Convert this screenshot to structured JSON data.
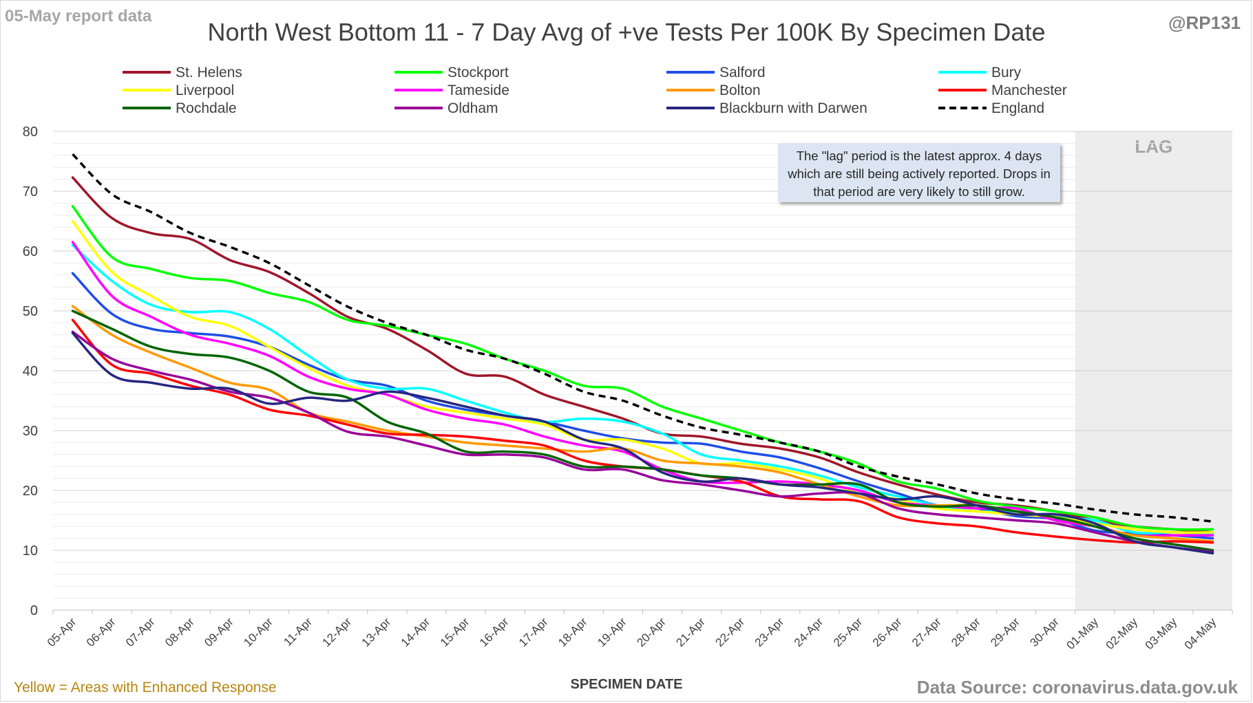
{
  "header": {
    "report_date": "05-May report data",
    "title": "North West Bottom 11 - 7 Day Avg of +ve Tests Per 100K By Specimen Date",
    "handle": "@RP131"
  },
  "annotation": "The \"lag\" period is the latest approx. 4 days which are still being actively reported. Drops in that period are very likely to still grow.",
  "footer": {
    "note": "Yellow = Areas with Enhanced Response",
    "xlabel": "SPECIMEN DATE",
    "source": "Data Source: coronavirus.data.gov.uk"
  },
  "chart_data": {
    "type": "line",
    "title": "North West Bottom 11 - 7 Day Avg of +ve Tests Per 100K By Specimen Date",
    "xlabel": "SPECIMEN DATE",
    "ylabel": "",
    "ylim": [
      0,
      80
    ],
    "yticks": [
      0,
      10,
      20,
      30,
      40,
      50,
      60,
      70,
      80
    ],
    "grid": "horizontal",
    "legend_position": "top",
    "lag_label": "LAG",
    "lag_start": "01-May",
    "lag_end": "04-May",
    "x": [
      "05-Apr",
      "06-Apr",
      "07-Apr",
      "08-Apr",
      "09-Apr",
      "10-Apr",
      "11-Apr",
      "12-Apr",
      "13-Apr",
      "14-Apr",
      "15-Apr",
      "16-Apr",
      "17-Apr",
      "18-Apr",
      "19-Apr",
      "20-Apr",
      "21-Apr",
      "22-Apr",
      "23-Apr",
      "24-Apr",
      "25-Apr",
      "26-Apr",
      "27-Apr",
      "28-Apr",
      "29-Apr",
      "30-Apr",
      "01-May",
      "02-May",
      "03-May",
      "04-May"
    ],
    "series": [
      {
        "name": "St. Helens",
        "color": "#a0162a",
        "dash": false,
        "values": [
          72.3,
          65.5,
          63.0,
          62.0,
          58.5,
          56.5,
          53.0,
          49.0,
          47.0,
          43.5,
          39.5,
          39.0,
          36.0,
          34.0,
          32.0,
          29.5,
          29.0,
          27.8,
          27.0,
          25.5,
          23.0,
          21.0,
          19.3,
          18.0,
          17.5,
          16.5,
          15.0,
          14.0,
          13.5,
          13.0
        ]
      },
      {
        "name": "Stockport",
        "color": "#00ff00",
        "dash": false,
        "values": [
          67.5,
          59.0,
          57.0,
          55.5,
          55.0,
          53.0,
          51.5,
          48.5,
          47.5,
          46.0,
          44.5,
          42.0,
          40.0,
          37.5,
          37.0,
          34.0,
          32.0,
          30.0,
          28.0,
          26.5,
          24.5,
          21.5,
          20.3,
          18.3,
          17.3,
          16.5,
          15.5,
          14.0,
          13.5,
          13.5
        ]
      },
      {
        "name": "Salford",
        "color": "#1f4ee6",
        "dash": false,
        "values": [
          56.3,
          49.5,
          47.0,
          46.3,
          45.7,
          44.0,
          41.0,
          38.5,
          37.5,
          35.0,
          33.5,
          32.5,
          31.5,
          30.0,
          28.7,
          28.0,
          27.8,
          26.5,
          25.5,
          23.7,
          21.5,
          19.5,
          17.5,
          17.0,
          15.7,
          15.2,
          13.3,
          12.8,
          12.5,
          12.0
        ]
      },
      {
        "name": "Bury",
        "color": "#00ffff",
        "dash": false,
        "values": [
          61.0,
          55.0,
          51.0,
          49.8,
          49.8,
          47.0,
          42.5,
          38.5,
          37.0,
          37.0,
          35.0,
          33.0,
          31.5,
          32.0,
          31.5,
          29.5,
          26.0,
          25.0,
          24.0,
          22.5,
          20.5,
          19.0,
          17.5,
          16.5,
          16.5,
          15.5,
          15.0,
          13.0,
          13.0,
          12.7
        ]
      },
      {
        "name": "Liverpool",
        "color": "#ffff00",
        "dash": false,
        "values": [
          65.0,
          56.5,
          52.5,
          49.0,
          47.5,
          44.0,
          40.5,
          37.5,
          36.0,
          34.0,
          33.0,
          32.0,
          31.0,
          28.5,
          28.5,
          27.0,
          24.5,
          24.5,
          23.5,
          22.0,
          19.5,
          18.5,
          17.0,
          16.5,
          16.0,
          15.5,
          14.5,
          13.5,
          13.0,
          13.0
        ]
      },
      {
        "name": "Tameside",
        "color": "#ff00ff",
        "dash": false,
        "values": [
          61.5,
          52.5,
          49.0,
          46.0,
          44.5,
          42.5,
          39.0,
          37.0,
          36.0,
          33.5,
          32.0,
          31.0,
          29.0,
          27.5,
          26.5,
          23.5,
          21.5,
          21.3,
          21.5,
          21.0,
          20.0,
          18.0,
          17.5,
          17.0,
          17.0,
          15.0,
          14.0,
          12.5,
          12.5,
          12.5
        ]
      },
      {
        "name": "Bolton",
        "color": "#ff9900",
        "dash": false,
        "values": [
          50.8,
          46.0,
          43.0,
          40.5,
          38.0,
          36.8,
          33.0,
          31.5,
          30.0,
          29.0,
          28.0,
          27.5,
          27.0,
          26.5,
          27.0,
          25.0,
          24.5,
          24.0,
          23.0,
          21.0,
          19.0,
          17.5,
          17.5,
          17.5,
          16.5,
          15.5,
          14.0,
          12.5,
          12.0,
          11.5
        ]
      },
      {
        "name": "Manchester",
        "color": "#ff0000",
        "dash": false,
        "values": [
          48.5,
          41.0,
          39.5,
          37.5,
          36.0,
          33.5,
          32.5,
          31.0,
          29.5,
          29.3,
          29.0,
          28.3,
          27.5,
          25.0,
          24.0,
          23.5,
          22.5,
          21.5,
          19.0,
          18.5,
          18.2,
          15.5,
          14.5,
          14.0,
          13.0,
          12.3,
          11.7,
          11.3,
          11.5,
          11.3
        ]
      },
      {
        "name": "Rochdale",
        "color": "#006400",
        "dash": false,
        "values": [
          50.0,
          47.0,
          44.0,
          42.8,
          42.2,
          40.0,
          36.5,
          35.5,
          31.5,
          29.5,
          26.5,
          26.5,
          26.0,
          24.0,
          24.0,
          23.5,
          22.5,
          22.0,
          21.0,
          21.0,
          21.0,
          18.0,
          17.3,
          17.5,
          16.5,
          15.5,
          14.0,
          12.0,
          11.0,
          10.0
        ]
      },
      {
        "name": "Oldham",
        "color": "#990099",
        "dash": false,
        "values": [
          46.5,
          42.0,
          40.0,
          38.5,
          36.5,
          35.5,
          33.0,
          29.8,
          29.0,
          27.5,
          26.0,
          26.0,
          25.5,
          23.5,
          23.5,
          21.7,
          21.0,
          20.0,
          19.0,
          19.5,
          19.5,
          17.0,
          16.0,
          15.5,
          15.0,
          14.5,
          13.0,
          11.5,
          10.5,
          9.7
        ]
      },
      {
        "name": "Blackburn with Darwen",
        "color": "#262680",
        "dash": false,
        "values": [
          46.3,
          39.3,
          38.0,
          37.0,
          37.0,
          34.5,
          35.5,
          35.0,
          36.5,
          35.5,
          34.0,
          32.5,
          31.5,
          28.5,
          27.0,
          23.0,
          21.5,
          22.0,
          21.0,
          20.5,
          19.5,
          18.5,
          19.0,
          17.5,
          16.0,
          16.0,
          14.5,
          11.5,
          10.5,
          9.5
        ]
      },
      {
        "name": "England",
        "color": "#000000",
        "dash": true,
        "values": [
          76.2,
          69.5,
          66.5,
          63.0,
          60.7,
          58.0,
          54.3,
          50.7,
          48.0,
          46.0,
          43.5,
          42.0,
          39.5,
          36.5,
          35.0,
          32.5,
          30.5,
          29.3,
          28.0,
          26.5,
          24.0,
          22.3,
          21.0,
          19.5,
          18.5,
          17.8,
          16.8,
          16.0,
          15.5,
          14.8
        ]
      }
    ]
  }
}
